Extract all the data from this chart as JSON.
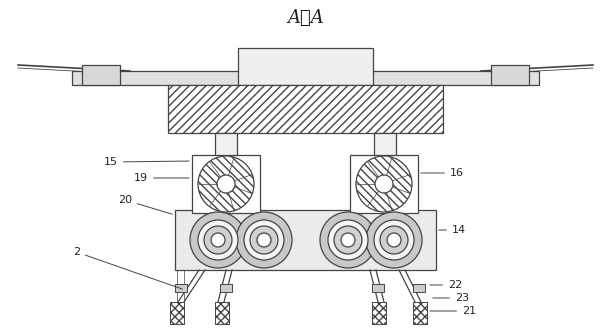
{
  "title": "A－A",
  "title_fontsize": 13,
  "bg_color": "#ffffff",
  "line_color": "#444444",
  "labels": [
    "15",
    "19",
    "20",
    "2",
    "16",
    "14",
    "22",
    "23",
    "21"
  ]
}
